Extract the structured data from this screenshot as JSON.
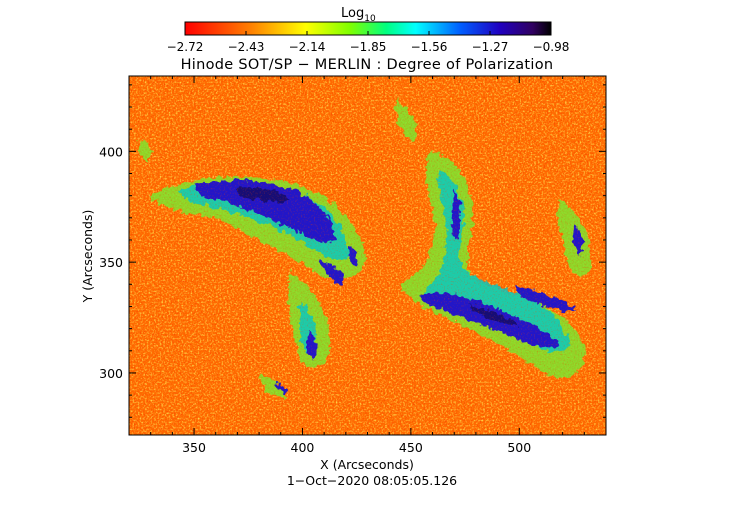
{
  "colorbar": {
    "label_base": "Log",
    "label_sub": "10",
    "tick_labels": [
      "−2.72",
      "−2.43",
      "−2.14",
      "−1.85",
      "−1.56",
      "−1.27",
      "−0.98"
    ],
    "range": [
      -2.72,
      -0.98
    ]
  },
  "title": "Hinode SOT/SP − MERLIN : Degree of Polarization",
  "axes": {
    "xlabel": "X (Arcseconds)",
    "ylabel": "Y (Arcseconds)",
    "xlim": [
      320,
      540
    ],
    "ylim": [
      272,
      434
    ],
    "xticks": [
      350,
      400,
      450,
      500
    ],
    "yticks": [
      300,
      350,
      400
    ]
  },
  "timestamp": "1−Oct−2020 08:05:05.126",
  "colors": {
    "low": "#ff1a00",
    "mid_low": "#ff7a00",
    "mid": "#ffe600",
    "mid_high": "#00ff80",
    "high": "#2020e0",
    "max": "#000000"
  }
}
